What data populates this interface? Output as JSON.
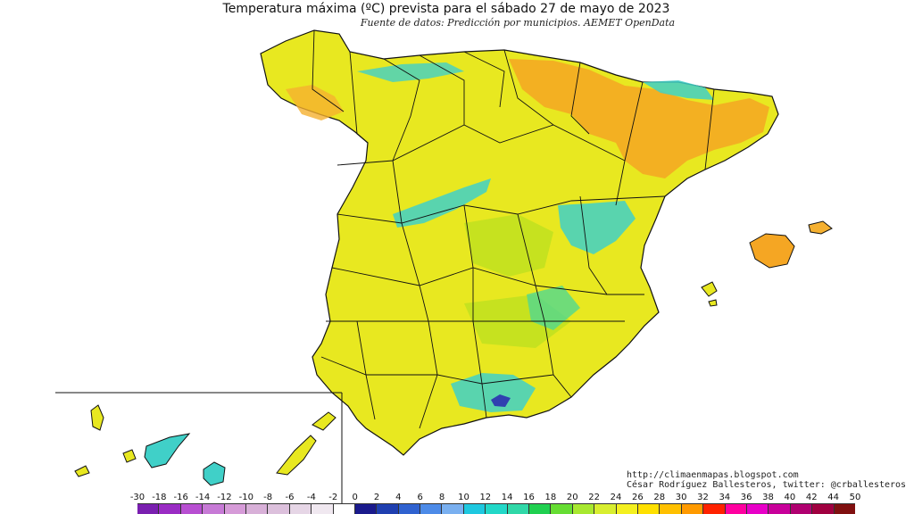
{
  "title": "Temperatura máxima (ºC) prevista para el sábado 27 de mayo de 2023",
  "subtitle": "Fuente de datos: Predicción por municipios. AEMET OpenData",
  "credits": {
    "line1": "http://climaenmapas.blogspot.com",
    "line2": "César Rodríguez Ballesteros, twitter: @crballesteros"
  },
  "legend": {
    "labels": [
      "-30",
      "-18",
      "-16",
      "-14",
      "-12",
      "-10",
      "-8",
      "-6",
      "-4",
      "-2",
      "0",
      "2",
      "4",
      "6",
      "8",
      "10",
      "12",
      "14",
      "16",
      "18",
      "20",
      "22",
      "24",
      "26",
      "28",
      "30",
      "32",
      "34",
      "36",
      "38",
      "40",
      "42",
      "44",
      "50"
    ],
    "colors": [
      "#7a1fb0",
      "#9a2cc4",
      "#b84fd2",
      "#c77ad6",
      "#d69bd8",
      "#d8b0d8",
      "#dcc0dc",
      "#e6d6e6",
      "#f0e8f0",
      "#ffffff",
      "#1a1a8c",
      "#1f3fb0",
      "#2f62d0",
      "#4d8be8",
      "#7ab0f0",
      "#1ec8e0",
      "#22d8c8",
      "#30d8a8",
      "#20d050",
      "#66dd33",
      "#a8e830",
      "#d8ee30",
      "#f4f020",
      "#ffe000",
      "#ffc000",
      "#ff9a00",
      "#ff2200",
      "#ff00a0",
      "#e800c8",
      "#c8009a",
      "#b00070",
      "#a00040",
      "#801010"
    ]
  },
  "colors": {
    "land": "#e8e820",
    "warm": "#f5a623",
    "cool": "#40d0c8",
    "mild": "#b8e020"
  }
}
